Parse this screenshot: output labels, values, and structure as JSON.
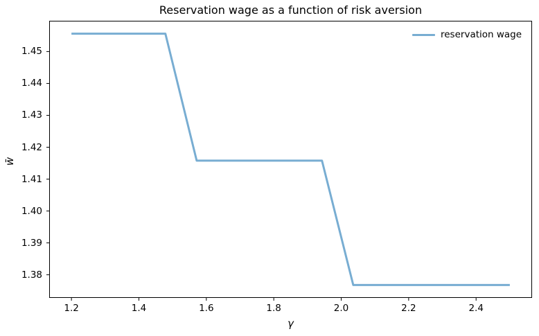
{
  "figure": {
    "background_color": "#ffffff",
    "text_color": "#000000",
    "spine_color": "#000000"
  },
  "chart_data": {
    "type": "line",
    "title": "Reservation wage as a function of risk aversion",
    "xlabel": "γ",
    "ylabel": "w̄",
    "xlim": [
      1.135,
      2.565
    ],
    "ylim": [
      1.37286,
      1.45954
    ],
    "x_ticks": [
      1.2,
      1.4,
      1.6,
      1.8,
      2.0,
      2.2,
      2.4
    ],
    "x_tick_labels": [
      "1.2",
      "1.4",
      "1.6",
      "1.8",
      "2.0",
      "2.2",
      "2.4"
    ],
    "y_ticks": [
      1.38,
      1.39,
      1.4,
      1.41,
      1.42,
      1.43,
      1.44,
      1.45
    ],
    "y_tick_labels": [
      "1.38",
      "1.39",
      "1.40",
      "1.41",
      "1.42",
      "1.43",
      "1.44",
      "1.45"
    ],
    "grid": false,
    "legend_position": "upper right",
    "legend_frame": false,
    "series": [
      {
        "name": "reservation wage",
        "color": "#78add2",
        "line_width": 3,
        "x": [
          1.2,
          1.2929,
          1.3857,
          1.4786,
          1.5714,
          1.6643,
          1.7571,
          1.85,
          1.9429,
          2.0357,
          2.1286,
          2.2214,
          2.3143,
          2.4071,
          2.5
        ],
        "y": [
          1.4556,
          1.4556,
          1.4556,
          1.4556,
          1.4158,
          1.4158,
          1.4158,
          1.4158,
          1.4158,
          1.3768,
          1.3768,
          1.3768,
          1.3768,
          1.3768,
          1.3768
        ]
      }
    ]
  }
}
